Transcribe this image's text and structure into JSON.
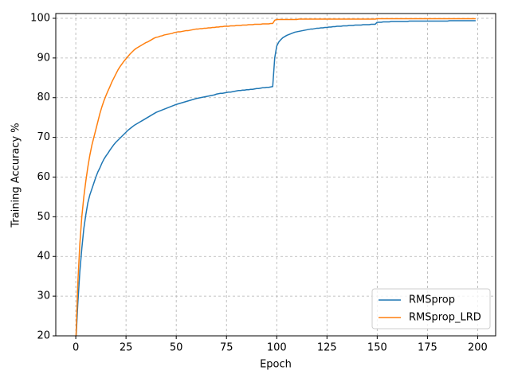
{
  "chart_data": {
    "type": "line",
    "x_label": "Epoch",
    "y_label": "Training Accuracy %",
    "x": [
      0,
      1,
      2,
      3,
      4,
      5,
      6,
      7,
      8,
      9,
      10,
      11,
      12,
      13,
      14,
      15,
      16,
      17,
      18,
      19,
      20,
      21,
      22,
      23,
      24,
      25,
      26,
      27,
      28,
      29,
      30,
      31,
      32,
      33,
      34,
      35,
      36,
      37,
      38,
      39,
      40,
      41,
      42,
      43,
      44,
      45,
      46,
      47,
      48,
      49,
      50,
      51,
      52,
      53,
      54,
      55,
      56,
      57,
      58,
      59,
      60,
      61,
      62,
      63,
      64,
      65,
      66,
      67,
      68,
      69,
      70,
      71,
      72,
      73,
      74,
      75,
      76,
      77,
      78,
      79,
      80,
      81,
      82,
      83,
      84,
      85,
      86,
      87,
      88,
      89,
      90,
      91,
      92,
      93,
      94,
      95,
      96,
      97,
      98,
      99,
      100,
      101,
      102,
      103,
      104,
      105,
      106,
      107,
      108,
      109,
      110,
      111,
      112,
      113,
      114,
      115,
      116,
      117,
      118,
      119,
      120,
      121,
      122,
      123,
      124,
      125,
      126,
      127,
      128,
      129,
      130,
      131,
      132,
      133,
      134,
      135,
      136,
      137,
      138,
      139,
      140,
      141,
      142,
      143,
      144,
      145,
      146,
      147,
      148,
      149,
      150,
      151,
      152,
      153,
      154,
      155,
      156,
      157,
      158,
      159,
      160,
      161,
      162,
      163,
      164,
      165,
      166,
      167,
      168,
      169,
      170,
      171,
      172,
      173,
      174,
      175,
      176,
      177,
      178,
      179,
      180,
      181,
      182,
      183,
      184,
      185,
      186,
      187,
      188,
      189,
      190,
      191,
      192,
      193,
      194,
      195,
      196,
      197,
      198,
      199
    ],
    "series": [
      {
        "name": "RMSprop",
        "color": "#1f77b4",
        "values": [
          18,
          28,
          36,
          42,
          47,
          50.5,
          53.5,
          55.5,
          57,
          58.5,
          60,
          61.3,
          62.3,
          63.5,
          64.5,
          65.3,
          66,
          66.8,
          67.5,
          68.2,
          68.8,
          69.3,
          69.8,
          70.3,
          70.8,
          71.3,
          71.8,
          72.2,
          72.6,
          73,
          73.3,
          73.6,
          73.9,
          74.2,
          74.5,
          74.8,
          75.1,
          75.4,
          75.7,
          76,
          76.3,
          76.5,
          76.7,
          76.9,
          77.1,
          77.3,
          77.5,
          77.7,
          77.9,
          78.1,
          78.3,
          78.45,
          78.6,
          78.75,
          78.9,
          79.05,
          79.2,
          79.35,
          79.5,
          79.65,
          79.8,
          79.9,
          80,
          80.1,
          80.2,
          80.3,
          80.4,
          80.5,
          80.6,
          80.7,
          80.9,
          81,
          81.1,
          81.1,
          81.2,
          81.3,
          81.4,
          81.4,
          81.5,
          81.6,
          81.7,
          81.8,
          81.8,
          81.9,
          81.9,
          82,
          82,
          82.1,
          82.1,
          82.2,
          82.3,
          82.3,
          82.4,
          82.5,
          82.5,
          82.6,
          82.6,
          82.7,
          82.8,
          90,
          93,
          94,
          94.6,
          95.1,
          95.4,
          95.7,
          95.9,
          96.1,
          96.3,
          96.5,
          96.6,
          96.7,
          96.8,
          96.9,
          97,
          97.1,
          97.2,
          97.3,
          97.3,
          97.4,
          97.5,
          97.5,
          97.6,
          97.6,
          97.7,
          97.7,
          97.8,
          97.8,
          97.9,
          97.9,
          98,
          98,
          98,
          98.1,
          98.1,
          98.1,
          98.2,
          98.2,
          98.2,
          98.3,
          98.3,
          98.3,
          98.3,
          98.4,
          98.4,
          98.4,
          98.4,
          98.5,
          98.5,
          98.5,
          99,
          99,
          99,
          99.1,
          99.1,
          99.1,
          99.1,
          99.2,
          99.2,
          99.2,
          99.2,
          99.2,
          99.2,
          99.2,
          99.2,
          99.2,
          99.3,
          99.3,
          99.3,
          99.3,
          99.3,
          99.3,
          99.3,
          99.3,
          99.3,
          99.3,
          99.3,
          99.3,
          99.3,
          99.3,
          99.3,
          99.3,
          99.3,
          99.3,
          99.3,
          99.3,
          99.4,
          99.4,
          99.4,
          99.4,
          99.4,
          99.4,
          99.4,
          99.4,
          99.4,
          99.4,
          99.4,
          99.4,
          99.4,
          99.4
        ]
      },
      {
        "name": "RMSprop_LRD",
        "color": "#ff7f0e",
        "values": [
          18,
          33,
          43,
          50,
          55,
          59,
          62.5,
          65.5,
          68,
          70,
          72,
          74,
          76,
          77.7,
          79.2,
          80.5,
          81.7,
          82.8,
          84,
          85,
          86,
          87,
          87.8,
          88.5,
          89.2,
          89.8,
          90.4,
          91,
          91.5,
          92,
          92.4,
          92.7,
          93,
          93.3,
          93.6,
          93.9,
          94.1,
          94.4,
          94.7,
          95,
          95.2,
          95.3,
          95.5,
          95.6,
          95.8,
          95.9,
          96,
          96.1,
          96.2,
          96.4,
          96.5,
          96.6,
          96.6,
          96.7,
          96.8,
          96.9,
          96.9,
          97,
          97.1,
          97.2,
          97.3,
          97.3,
          97.4,
          97.4,
          97.5,
          97.5,
          97.6,
          97.6,
          97.7,
          97.7,
          97.8,
          97.8,
          97.9,
          97.9,
          98,
          98,
          98,
          98.1,
          98.1,
          98.1,
          98.2,
          98.2,
          98.2,
          98.3,
          98.3,
          98.3,
          98.4,
          98.4,
          98.4,
          98.5,
          98.5,
          98.5,
          98.5,
          98.6,
          98.6,
          98.6,
          98.6,
          98.7,
          98.7,
          99.5,
          99.7,
          99.7,
          99.7,
          99.7,
          99.7,
          99.7,
          99.7,
          99.7,
          99.7,
          99.7,
          99.7,
          99.8,
          99.8,
          99.8,
          99.8,
          99.8,
          99.8,
          99.8,
          99.8,
          99.8,
          99.8,
          99.8,
          99.8,
          99.8,
          99.8,
          99.8,
          99.8,
          99.8,
          99.8,
          99.8,
          99.8,
          99.8,
          99.8,
          99.8,
          99.8,
          99.8,
          99.8,
          99.8,
          99.8,
          99.8,
          99.8,
          99.8,
          99.8,
          99.8,
          99.8,
          99.8,
          99.8,
          99.8,
          99.8,
          99.8,
          99.9,
          99.9,
          99.9,
          99.9,
          99.9,
          99.9,
          99.9,
          99.9,
          99.9,
          99.9,
          99.9,
          99.9,
          99.9,
          99.9,
          99.9,
          99.9,
          99.9,
          99.9,
          99.9,
          99.9,
          99.9,
          99.9,
          99.9,
          99.9,
          99.9,
          99.9,
          99.9,
          99.9,
          99.9,
          99.9,
          99.9,
          99.9,
          99.9,
          99.9,
          99.9,
          99.9,
          99.9,
          99.9,
          99.9,
          99.9,
          99.9,
          99.9,
          99.9,
          99.9,
          99.9,
          99.9,
          99.9,
          99.9,
          99.9,
          99.9
        ]
      }
    ],
    "xlim": [
      -9.95,
      208.95
    ],
    "ylim": [
      20,
      101.2
    ],
    "xticks": [
      0,
      25,
      50,
      75,
      100,
      125,
      150,
      175,
      200
    ],
    "yticks": [
      20,
      30,
      40,
      50,
      60,
      70,
      80,
      90,
      100
    ],
    "grid": true,
    "legend": "lower right"
  }
}
